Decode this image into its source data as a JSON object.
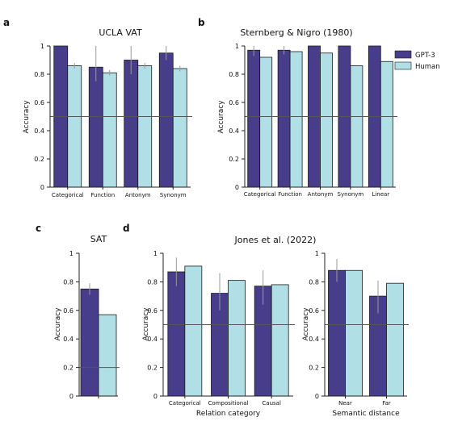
{
  "colors": {
    "gpt3": "#483d8b",
    "human": "#b0e0e6",
    "axis": "#222222",
    "err": "#999999",
    "chance": "#555555"
  },
  "legend": {
    "items": [
      {
        "label": "GPT-3",
        "color": "#483d8b"
      },
      {
        "label": "Human",
        "color": "#b0e0e6"
      }
    ]
  },
  "chart_data": [
    {
      "panel": "a",
      "type": "bar",
      "title": "UCLA VAT",
      "ylabel": "Accuracy",
      "xlabel": "",
      "ylim": [
        0,
        1
      ],
      "yticks": [
        "0",
        "0.2",
        "0.4",
        "0.6",
        "0.8",
        "1"
      ],
      "chance": 0.5,
      "categories": [
        "Categorical",
        "Function",
        "Antonym",
        "Synonym"
      ],
      "series": [
        {
          "name": "GPT-3",
          "values": [
            1.0,
            0.85,
            0.9,
            0.95
          ],
          "err_low": [
            1.0,
            0.75,
            0.8,
            0.9
          ],
          "err_high": [
            1.0,
            1.0,
            1.0,
            1.0
          ]
        },
        {
          "name": "Human",
          "values": [
            0.86,
            0.81,
            0.86,
            0.84
          ],
          "err_low": [
            0.84,
            0.79,
            0.84,
            0.82
          ],
          "err_high": [
            0.88,
            0.83,
            0.88,
            0.86
          ]
        }
      ]
    },
    {
      "panel": "b",
      "type": "bar",
      "title": "Sternberg & Nigro (1980)",
      "ylabel": "Accuracy",
      "xlabel": "",
      "ylim": [
        0,
        1
      ],
      "yticks": [
        "0",
        "0.2",
        "0.4",
        "0.6",
        "0.8",
        "1"
      ],
      "chance": 0.5,
      "categories": [
        "Categorical",
        "Function",
        "Antonym",
        "Synonym",
        "Linear"
      ],
      "series": [
        {
          "name": "GPT-3",
          "values": [
            0.97,
            0.97,
            1.0,
            1.0,
            1.0
          ],
          "err_low": [
            0.93,
            0.94,
            1.0,
            1.0,
            1.0
          ],
          "err_high": [
            1.0,
            1.0,
            1.0,
            1.0,
            1.0
          ]
        },
        {
          "name": "Human",
          "values": [
            0.92,
            0.96,
            0.95,
            0.86,
            0.89
          ],
          "err_low": null,
          "err_high": null
        }
      ]
    },
    {
      "panel": "c",
      "type": "bar",
      "title": "SAT",
      "ylabel": "Accuracy",
      "xlabel": "",
      "ylim": [
        0,
        1
      ],
      "yticks": [
        "0",
        "0.2",
        "0.4",
        "0.6",
        "0.8",
        "1"
      ],
      "chance": 0.2,
      "categories": [
        ""
      ],
      "series": [
        {
          "name": "GPT-3",
          "values": [
            0.75
          ],
          "err_low": [
            0.71
          ],
          "err_high": [
            0.79
          ]
        },
        {
          "name": "Human",
          "values": [
            0.57
          ],
          "err_low": null,
          "err_high": null
        }
      ]
    },
    {
      "panel": "d",
      "type": "bar",
      "title": "Jones et al. (2022)",
      "ylabel": "Accuracy",
      "xlabel": "Relation category",
      "ylim": [
        0,
        1
      ],
      "yticks": [
        "0",
        "0.2",
        "0.4",
        "0.6",
        "0.8",
        "1"
      ],
      "chance": 0.5,
      "categories": [
        "Categorical",
        "Compositional",
        "Causal"
      ],
      "series": [
        {
          "name": "GPT-3",
          "values": [
            0.87,
            0.72,
            0.77
          ],
          "err_low": [
            0.77,
            0.6,
            0.64
          ],
          "err_high": [
            0.97,
            0.86,
            0.88
          ]
        },
        {
          "name": "Human",
          "values": [
            0.91,
            0.81,
            0.78
          ],
          "err_low": null,
          "err_high": null
        }
      ]
    },
    {
      "panel": "",
      "type": "bar",
      "title": "",
      "ylabel": "Accuracy",
      "xlabel": "Semantic distance",
      "ylim": [
        0,
        1
      ],
      "yticks": [
        "0",
        "0.2",
        "0.4",
        "0.6",
        "0.8",
        "1"
      ],
      "chance": 0.5,
      "categories": [
        "Near",
        "Far"
      ],
      "series": [
        {
          "name": "GPT-3",
          "values": [
            0.88,
            0.7
          ],
          "err_low": [
            0.8,
            0.58
          ],
          "err_high": [
            0.96,
            0.81
          ]
        },
        {
          "name": "Human",
          "values": [
            0.88,
            0.79
          ],
          "err_low": null,
          "err_high": null
        }
      ]
    }
  ]
}
